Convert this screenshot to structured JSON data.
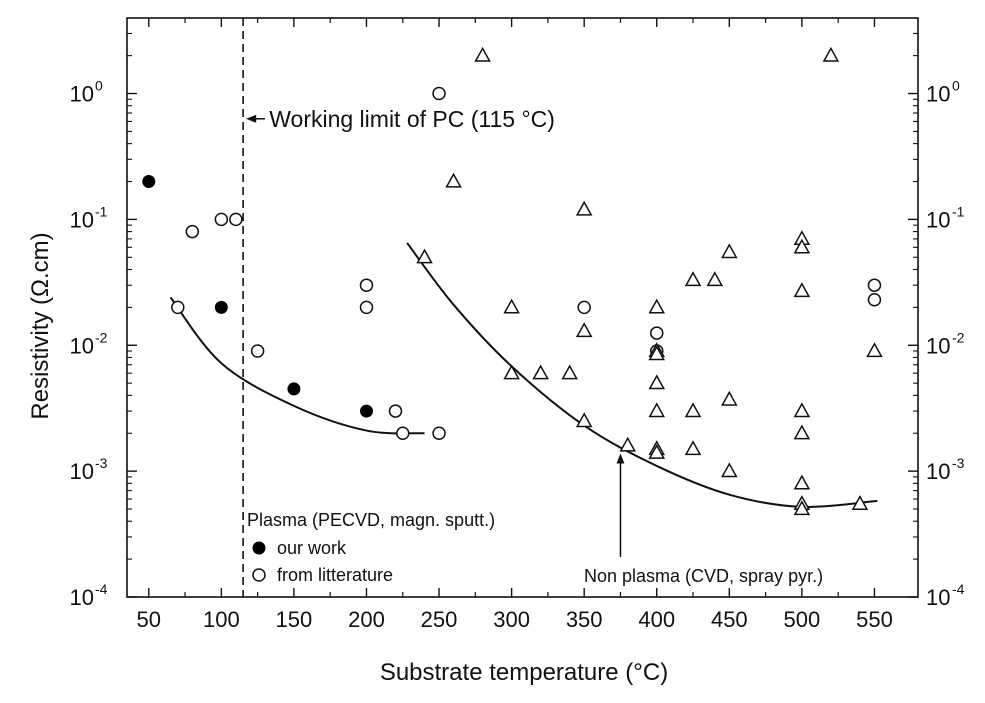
{
  "chart_data": {
    "type": "scatter",
    "xlabel": "Substrate temperature (°C)",
    "ylabel": "Resistivity (Ω.cm)",
    "xlim": [
      35,
      580
    ],
    "ylim_exponents": [
      -4,
      0.6
    ],
    "y_scale": "log",
    "x_ticks": [
      "50",
      "100",
      "150",
      "200",
      "250",
      "300",
      "350",
      "400",
      "450",
      "500",
      "550"
    ],
    "y_tick_base": "10",
    "y_tick_exponents": [
      "-4",
      "-3",
      "-2",
      "-1",
      "0"
    ],
    "grid": false,
    "legend_placement": "bottom-left",
    "legend": {
      "group_title": "Plasma (PECVD, magn. sputt.)",
      "entries": [
        "our work",
        "from litterature"
      ]
    },
    "annotations": [
      {
        "text": "Working limit of PC (115 °C)",
        "x": 115,
        "y": 0.63
      },
      {
        "text": "Non plasma (CVD, spray pyr.)",
        "arrow_to": {
          "x": 375,
          "y": 0.0016
        }
      }
    ],
    "vertical_line": {
      "x": 115,
      "style": "dashed"
    },
    "series": [
      {
        "name": "our work",
        "marker": "filled-circle",
        "x": [
          50,
          100,
          150,
          200
        ],
        "y": [
          0.2,
          0.02,
          0.0045,
          0.003
        ]
      },
      {
        "name": "from litterature",
        "marker": "open-circle",
        "x": [
          70,
          80,
          100,
          110,
          125,
          200,
          200,
          220,
          225,
          250,
          250,
          350,
          400,
          400,
          550,
          550
        ],
        "y": [
          0.02,
          0.08,
          0.1,
          0.1,
          0.009,
          0.03,
          0.02,
          0.003,
          0.002,
          0.002,
          1.0,
          0.02,
          0.0125,
          0.009,
          0.03,
          0.023
        ]
      },
      {
        "marker": "open-triangle",
        "x": [
          240,
          260,
          280,
          300,
          300,
          320,
          340,
          350,
          350,
          350,
          380,
          400,
          400,
          400,
          400,
          400,
          400,
          400,
          425,
          425,
          425,
          440,
          450,
          450,
          450,
          500,
          500,
          500,
          500,
          500,
          500,
          500,
          500,
          520,
          540,
          550
        ],
        "y": [
          0.05,
          0.2,
          2.0,
          0.02,
          0.006,
          0.006,
          0.006,
          0.12,
          0.013,
          0.0025,
          0.0016,
          0.02,
          0.009,
          0.0085,
          0.005,
          0.003,
          0.0015,
          0.0014,
          0.033,
          0.003,
          0.0015,
          0.033,
          0.055,
          0.0037,
          0.001,
          0.07,
          0.06,
          0.027,
          0.003,
          0.002,
          0.0008,
          0.00055,
          0.0005,
          2.0,
          0.00055,
          0.009
        ]
      },
      {
        "name": "plasma fit",
        "marker": "line",
        "x": [
          65,
          100,
          150,
          200,
          240
        ],
        "y": [
          0.024,
          0.0072,
          0.0033,
          0.0021,
          0.002
        ]
      },
      {
        "name": "non-plasma fit",
        "marker": "line",
        "x": [
          228,
          260,
          300,
          350,
          400,
          450,
          500,
          552
        ],
        "y": [
          0.065,
          0.021,
          0.0068,
          0.0023,
          0.0011,
          0.00065,
          0.00052,
          0.00058
        ]
      }
    ]
  }
}
